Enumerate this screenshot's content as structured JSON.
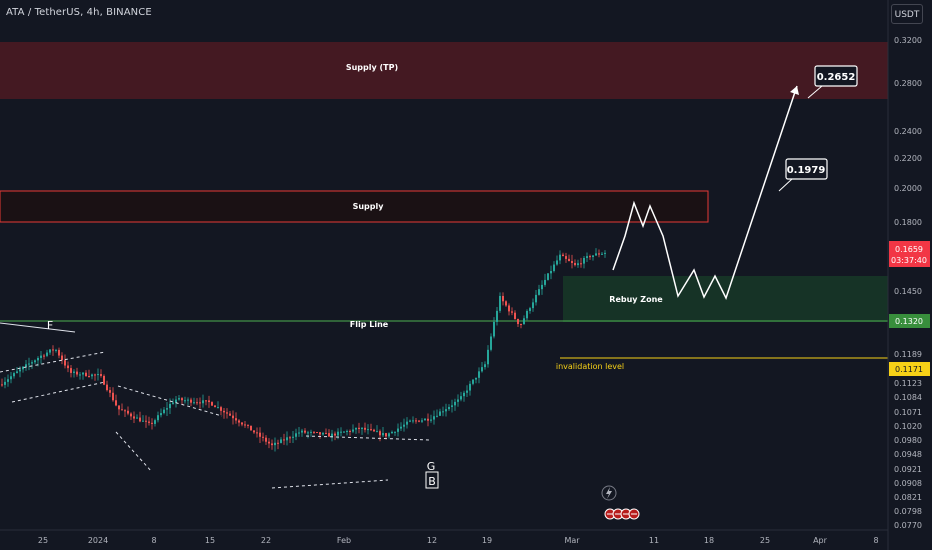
{
  "header": {
    "title": "ATA / TetherUS, 4h, BINANCE",
    "currency": "USDT"
  },
  "colors": {
    "background": "#131722",
    "up": "#26a69a",
    "down": "#ef5350",
    "supply_tp_fill": "#4a1a22",
    "supply_border": "#e53935",
    "rebuy_fill": "#163527",
    "flip_line": "#4caf50",
    "invalidation_line": "#f7d117",
    "current_price_bg": "#f23645",
    "flip_label_bg": "#388e3c",
    "invalid_label_bg": "#f7d117"
  },
  "chart_data": {
    "type": "candlestick",
    "y_scale": "log",
    "ylim": [
      0.077,
      0.335
    ],
    "y_ticks": [
      "0.3200",
      "0.2800",
      "0.2400",
      "0.2200",
      "0.2000",
      "0.1800",
      "0.1450",
      "0.1189",
      "0.1123",
      "0.1084",
      "0.1071",
      "0.1020",
      "0.0980",
      "0.0948",
      "0.0921",
      "0.0908",
      "0.0821",
      "0.0798",
      "0.0770"
    ],
    "x_ticks": [
      "25",
      "2024",
      "8",
      "15",
      "22",
      "Feb",
      "12",
      "19",
      "Mar",
      "11",
      "18",
      "25",
      "Apr",
      "8"
    ],
    "current_price": "0.1659",
    "countdown": "03:37:40",
    "flip_price": "0.1320",
    "invalidation_price": "0.1171",
    "zones": [
      {
        "name": "Supply (TP)",
        "from": 0.268,
        "to": 0.315
      },
      {
        "name": "Supply",
        "from": 0.18,
        "to": 0.199
      },
      {
        "name": "Rebuy Zone",
        "from": 0.132,
        "to": 0.152
      }
    ],
    "lines": [
      {
        "name": "Flip Line",
        "price": 0.132
      },
      {
        "name": "invalidation level",
        "price": 0.1171
      }
    ],
    "targets": [
      "0.1979",
      "0.2652"
    ],
    "pattern_labels": [
      "F",
      "G",
      "B"
    ],
    "events": {
      "icons": 4
    }
  }
}
